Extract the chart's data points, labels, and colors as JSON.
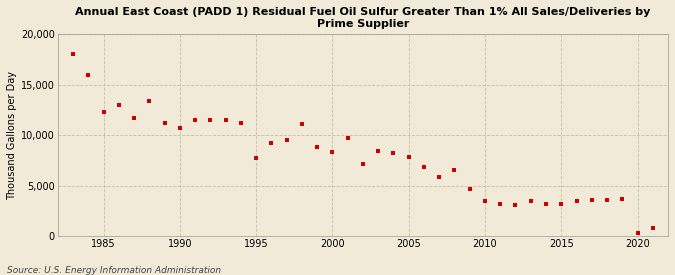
{
  "title": "Annual East Coast (PADD 1) Residual Fuel Oil Sulfur Greater Than 1% All Sales/Deliveries by\nPrime Supplier",
  "ylabel": "Thousand Gallons per Day",
  "source": "Source: U.S. Energy Information Administration",
  "background_color": "#f2ead8",
  "plot_bg_color": "#f2ead8",
  "marker_color": "#cc0000",
  "xlim": [
    1982,
    2022
  ],
  "ylim": [
    0,
    20000
  ],
  "yticks": [
    0,
    5000,
    10000,
    15000,
    20000
  ],
  "xticks": [
    1985,
    1990,
    1995,
    2000,
    2005,
    2010,
    2015,
    2020
  ],
  "years": [
    1983,
    1984,
    1985,
    1986,
    1987,
    1988,
    1989,
    1990,
    1991,
    1992,
    1993,
    1994,
    1995,
    1996,
    1997,
    1998,
    1999,
    2000,
    2001,
    2002,
    2003,
    2004,
    2005,
    2006,
    2007,
    2008,
    2009,
    2010,
    2011,
    2012,
    2013,
    2014,
    2015,
    2016,
    2017,
    2018,
    2019,
    2020,
    2021
  ],
  "values": [
    18000,
    16000,
    12300,
    13000,
    11700,
    13400,
    11200,
    10700,
    11500,
    11500,
    11500,
    11200,
    7700,
    9200,
    9500,
    11100,
    8800,
    8300,
    9700,
    7100,
    8400,
    8200,
    7800,
    6800,
    5900,
    6500,
    4700,
    3500,
    3200,
    3100,
    3500,
    3200,
    3200,
    3500,
    3600,
    3600,
    3700,
    300,
    800
  ],
  "title_fontsize": 8.0,
  "ylabel_fontsize": 7.0,
  "tick_fontsize": 7.0,
  "source_fontsize": 6.5
}
